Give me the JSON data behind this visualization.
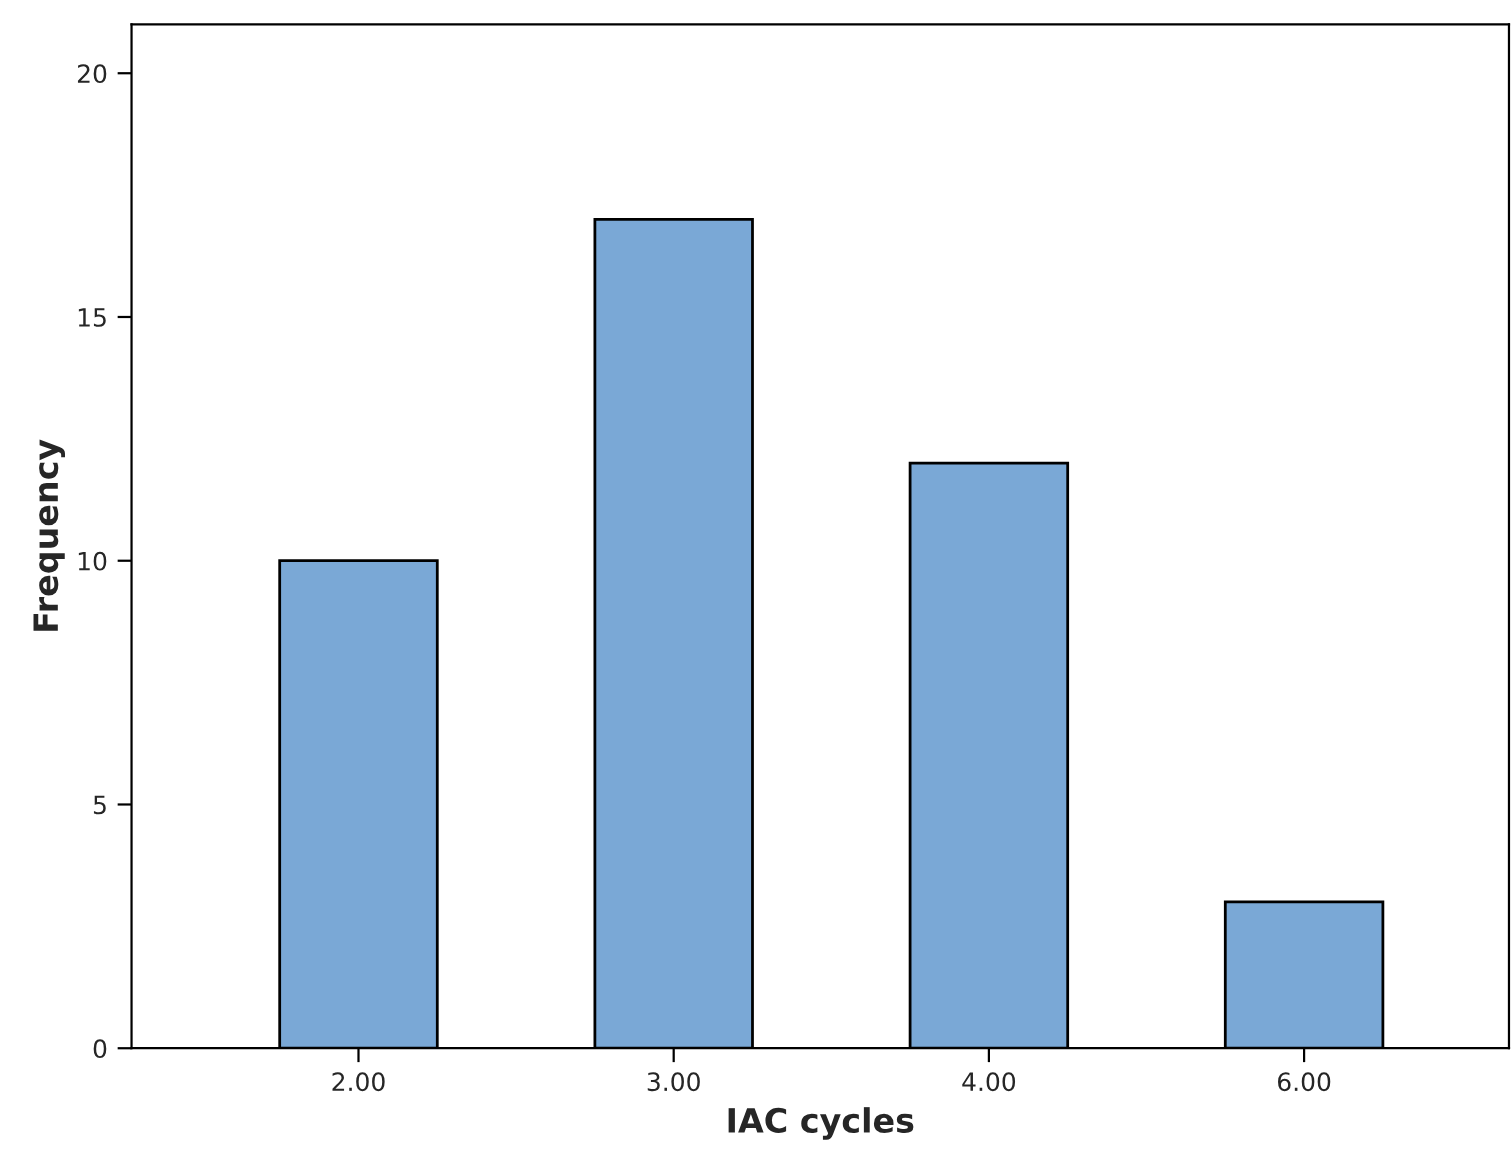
{
  "chart_data": {
    "type": "bar",
    "xlabel": "IAC cycles",
    "ylabel": "Frequency",
    "categories": [
      "2.00",
      "3.00",
      "4.00",
      "6.00"
    ],
    "values": [
      10,
      17,
      12,
      3
    ],
    "color": "#7aa8d6",
    "ylim": [
      0,
      21
    ],
    "yticks": [
      0,
      5,
      10,
      15,
      20
    ],
    "grid": false,
    "legend": false
  }
}
